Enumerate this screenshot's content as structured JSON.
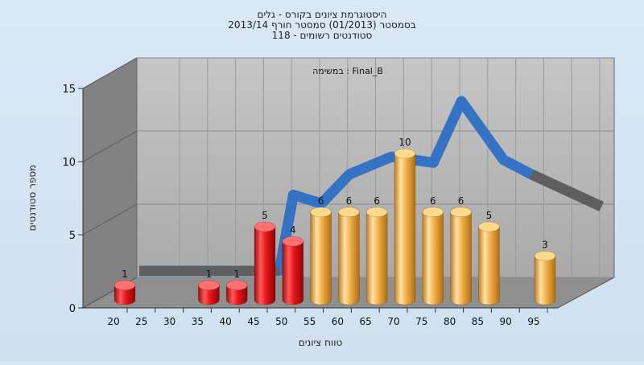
{
  "chart_data": {
    "type": "bar",
    "title_lines": [
      "היסטוגרמת ציונים בקורס - גלים",
      "בסמסטר  (01/2013)  סמסטר חורף 2013/14",
      "סטודנטים רשומים - 118"
    ],
    "inner_label": "במשימה : Final_B",
    "xlabel": "טווח ציונים",
    "ylabel": "מספר סטודנטים",
    "x_ticks": [
      "20",
      "25",
      "30",
      "35",
      "40",
      "45",
      "50",
      "55",
      "60",
      "65",
      "70",
      "75",
      "80",
      "85",
      "90",
      "95"
    ],
    "y_ticks": [
      "0",
      "5",
      "10",
      "15"
    ],
    "ylim": [
      0,
      15
    ],
    "bars": [
      {
        "x": 20,
        "value": 1,
        "color": "red"
      },
      {
        "x": 35,
        "value": 1,
        "color": "red"
      },
      {
        "x": 40,
        "value": 1,
        "color": "red"
      },
      {
        "x": 45,
        "value": 5,
        "color": "red"
      },
      {
        "x": 50,
        "value": 4,
        "color": "red"
      },
      {
        "x": 55,
        "value": 6,
        "color": "orange"
      },
      {
        "x": 60,
        "value": 6,
        "color": "orange"
      },
      {
        "x": 65,
        "value": 6,
        "color": "orange"
      },
      {
        "x": 70,
        "value": 10,
        "color": "orange"
      },
      {
        "x": 75,
        "value": 6,
        "color": "orange"
      },
      {
        "x": 80,
        "value": 6,
        "color": "orange"
      },
      {
        "x": 85,
        "value": 5,
        "color": "orange"
      },
      {
        "x": 95,
        "value": 3,
        "color": "orange"
      }
    ],
    "curve": [
      {
        "x": 20,
        "y": 0
      },
      {
        "x": 40,
        "y": 0
      },
      {
        "x": 45,
        "y": 0
      },
      {
        "x": 47.5,
        "y": 5.2
      },
      {
        "x": 52.5,
        "y": 4.6
      },
      {
        "x": 57.5,
        "y": 6.6
      },
      {
        "x": 65,
        "y": 7.8
      },
      {
        "x": 72.5,
        "y": 7.4
      },
      {
        "x": 77.5,
        "y": 11.6
      },
      {
        "x": 85,
        "y": 7.6
      },
      {
        "x": 90,
        "y": 6.6
      },
      {
        "x": 102.5,
        "y": 4.4
      }
    ],
    "colors": {
      "red": "#e8161b",
      "orange": "#f2b14a",
      "curve": "#2f6fc4",
      "curve_flat": "#5f5f5f",
      "back_wall": "#b4b4b4",
      "side_wall": "#828282",
      "floor": "#8f8f8f"
    },
    "grid": true,
    "legend": "none"
  }
}
